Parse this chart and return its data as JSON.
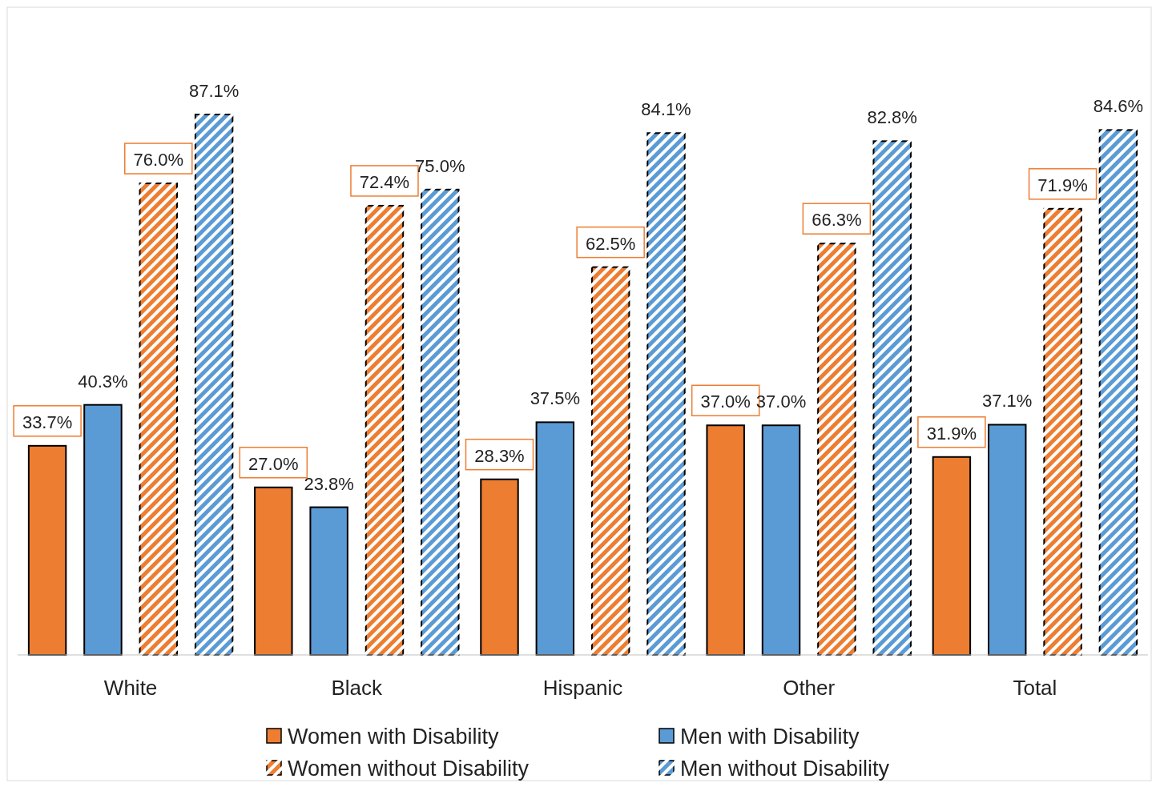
{
  "chart_data": {
    "type": "bar",
    "categories": [
      "White",
      "Black",
      "Hispanic",
      "Other",
      "Total"
    ],
    "series": [
      {
        "name": "Women with Disability",
        "color": "#ed7d31",
        "values": [
          33.7,
          27.0,
          28.3,
          37.0,
          31.9
        ],
        "value_labels": [
          "33.7%",
          "27.0%",
          "28.3%",
          "37.0%",
          "31.9%"
        ]
      },
      {
        "name": "Men with Disability",
        "color": "#5b9bd5",
        "values": [
          40.3,
          23.8,
          37.5,
          37.0,
          37.1
        ],
        "value_labels": [
          "40.3%",
          "23.8%",
          "37.5%",
          "37.0%",
          "37.1%"
        ]
      },
      {
        "name": "Women without Disability",
        "color": "#ed7d31",
        "values": [
          76.0,
          72.4,
          62.5,
          66.3,
          71.9
        ],
        "value_labels": [
          "76.0%",
          "72.4%",
          "62.5%",
          "66.3%",
          "71.9%"
        ]
      },
      {
        "name": "Men without Disability",
        "color": "#5b9bd5",
        "values": [
          87.1,
          75.0,
          84.1,
          82.8,
          84.6
        ],
        "value_labels": [
          "87.1%",
          "75.0%",
          "84.1%",
          "82.8%",
          "84.6%"
        ]
      }
    ],
    "legend": "bottom"
  }
}
